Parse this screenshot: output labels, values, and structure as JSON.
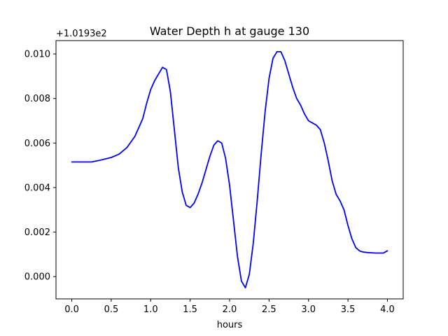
{
  "chart_data": {
    "type": "line",
    "title": "Water Depth h at gauge 130",
    "xlabel": "hours",
    "ylabel": "",
    "offset_label": "+1.0193e2",
    "xlim": [
      -0.2,
      4.2
    ],
    "ylim": [
      -0.001,
      0.0106
    ],
    "x_ticks": [
      0.0,
      0.5,
      1.0,
      1.5,
      2.0,
      2.5,
      3.0,
      3.5,
      4.0
    ],
    "x_tick_labels": [
      "0.0",
      "0.5",
      "1.0",
      "1.5",
      "2.0",
      "2.5",
      "3.0",
      "3.5",
      "4.0"
    ],
    "y_ticks": [
      0.0,
      0.002,
      0.004,
      0.006,
      0.008,
      0.01
    ],
    "y_tick_labels": [
      "0.000",
      "0.002",
      "0.004",
      "0.006",
      "0.008",
      "0.010"
    ],
    "grid": false,
    "series": [
      {
        "color": "#0000ff",
        "x": [
          0.0,
          0.1,
          0.25,
          0.35,
          0.5,
          0.6,
          0.7,
          0.8,
          0.9,
          0.95,
          1.0,
          1.05,
          1.1,
          1.15,
          1.2,
          1.25,
          1.3,
          1.35,
          1.4,
          1.45,
          1.5,
          1.55,
          1.6,
          1.65,
          1.7,
          1.75,
          1.8,
          1.85,
          1.9,
          1.95,
          2.0,
          2.05,
          2.1,
          2.15,
          2.2,
          2.25,
          2.3,
          2.35,
          2.4,
          2.45,
          2.5,
          2.55,
          2.6,
          2.65,
          2.7,
          2.75,
          2.8,
          2.85,
          2.9,
          2.95,
          3.0,
          3.05,
          3.1,
          3.15,
          3.2,
          3.25,
          3.3,
          3.35,
          3.4,
          3.45,
          3.5,
          3.55,
          3.6,
          3.65,
          3.7,
          3.75,
          3.8,
          3.85,
          3.9,
          3.95,
          4.0
        ],
        "y": [
          0.00515,
          0.00515,
          0.00515,
          0.00522,
          0.00535,
          0.0055,
          0.0058,
          0.0063,
          0.0071,
          0.0078,
          0.0084,
          0.0088,
          0.0091,
          0.0094,
          0.0093,
          0.0083,
          0.0066,
          0.0049,
          0.0038,
          0.0032,
          0.0031,
          0.0033,
          0.0037,
          0.0042,
          0.0048,
          0.0054,
          0.0059,
          0.0061,
          0.006,
          0.0053,
          0.0041,
          0.0025,
          0.0009,
          -0.0002,
          -0.0005,
          0.0001,
          0.0015,
          0.0034,
          0.0055,
          0.0074,
          0.0089,
          0.0098,
          0.0101,
          0.0101,
          0.0097,
          0.0091,
          0.0085,
          0.008,
          0.0077,
          0.0073,
          0.007,
          0.0069,
          0.0068,
          0.0066,
          0.006,
          0.0052,
          0.0043,
          0.0037,
          0.0034,
          0.003,
          0.0023,
          0.0017,
          0.0013,
          0.00115,
          0.0011,
          0.00108,
          0.00107,
          0.00106,
          0.00106,
          0.00106,
          0.00116
        ]
      }
    ]
  }
}
